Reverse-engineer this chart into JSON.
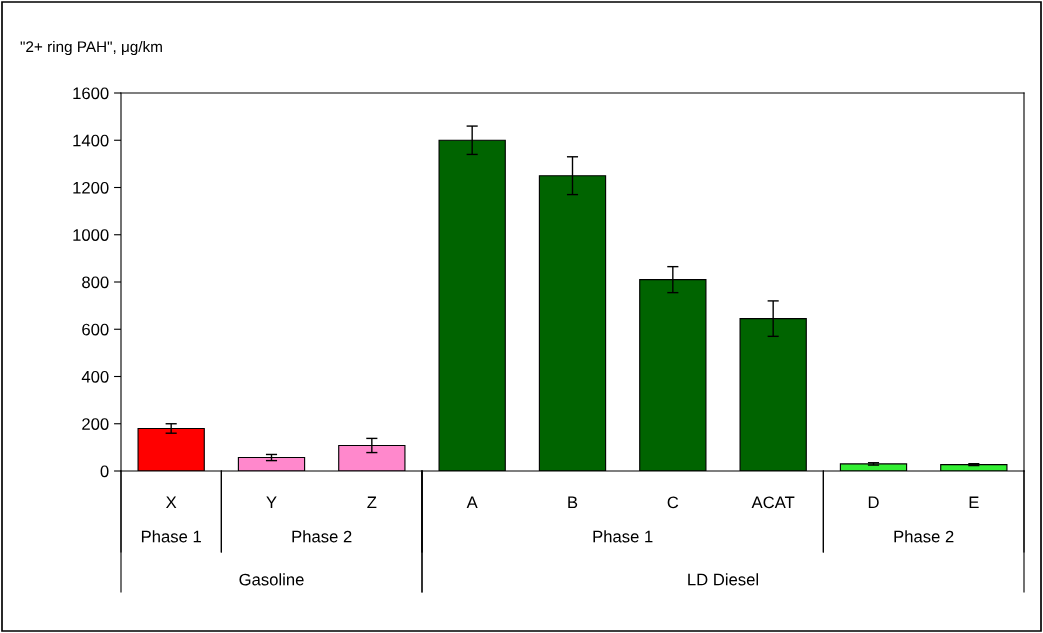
{
  "chart_data": {
    "type": "bar",
    "ylabel": "\"2+ ring PAH\", μg/km",
    "categories": [
      "X",
      "Y",
      "Z",
      "A",
      "B",
      "C",
      "ACAT",
      "D",
      "E"
    ],
    "values": [
      180,
      57,
      108,
      1400,
      1250,
      810,
      645,
      30,
      27
    ],
    "colors": [
      "#ff0000",
      "#ff88cc",
      "#ff88cc",
      "#006400",
      "#006400",
      "#006400",
      "#006400",
      "#33ee33",
      "#33ee33"
    ],
    "errors": [
      20,
      13,
      30,
      60,
      80,
      55,
      75,
      5,
      4
    ],
    "ylim": [
      0,
      1600
    ],
    "yticks": [
      0,
      200,
      400,
      600,
      800,
      1000,
      1200,
      1400,
      1600
    ],
    "annotations": [
      "Phase 1",
      "Phase 2",
      "Phase 1",
      "Phase 2",
      "Gasoline",
      "LD Diesel"
    ],
    "grid": false,
    "legend": false
  }
}
